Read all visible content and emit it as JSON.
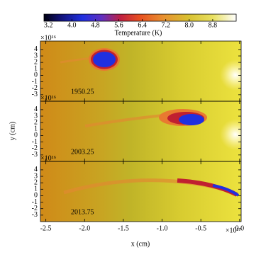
{
  "chart_data": {
    "type": "image",
    "xlabel": "x (cm)",
    "ylabel": "y (cm)",
    "x_scale_label": "×10¹⁷",
    "y_scale_label": "×10¹⁶",
    "xlim": [
      -2.57,
      0.02
    ],
    "xticks": [
      -2.5,
      {
        "value": -2.0,
        "label": "-2.0"
      },
      -1.5,
      {
        "value": -1.0,
        "label": "-1.0"
      },
      -0.5,
      {
        "value": 0.0,
        "label": "0.0"
      }
    ],
    "ylim": [
      -4.0,
      5.3
    ],
    "yticks": [
      4,
      3,
      2,
      1,
      0,
      -1,
      -2,
      -3
    ],
    "panels": [
      {
        "label": "1950.25"
      },
      {
        "label": "2003.25"
      },
      {
        "label": "2013.75"
      }
    ],
    "colorbar": {
      "label": "Temperature (K)",
      "lim": [
        3.05,
        9.6
      ],
      "ticks": [
        3.2,
        {
          "value": 4.0,
          "label": "4.0"
        },
        4.8,
        5.6,
        6.4,
        7.2,
        {
          "value": 8.0,
          "label": "8.0"
        },
        8.8
      ]
    }
  }
}
